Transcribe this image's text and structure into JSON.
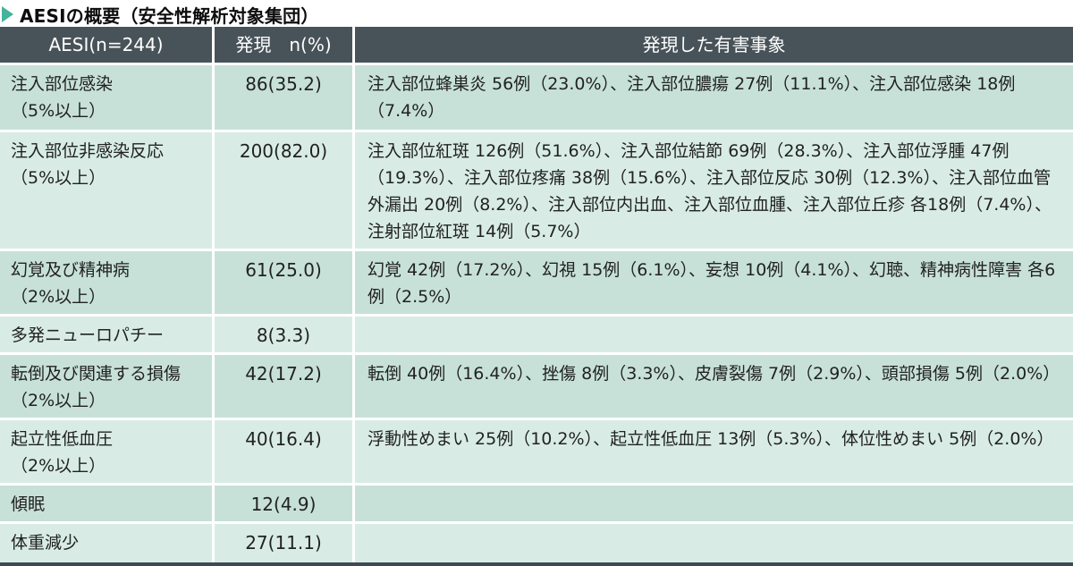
{
  "title": {
    "text": "AESIの概要（安全性解析対象集団）"
  },
  "colors": {
    "header_bg": "#485359",
    "row_dark": "#c7e1d9",
    "row_light": "#d8ece5",
    "marker_teal": "#45b39c",
    "bottom_border": "#3e4a52"
  },
  "table": {
    "headers": {
      "aesi": "AESI(n=244)",
      "incidence": "発現　n(%)",
      "events": "発現した有害事象"
    },
    "rows": [
      {
        "aesi": "注入部位感染\n（5%以上）",
        "incidence": "86(35.2)",
        "events": "注入部位蜂巣炎 56例（23.0%）、注入部位膿瘍 27例（11.1%）、注入部位感染 18例（7.4%）"
      },
      {
        "aesi": "注入部位非感染反応\n（5%以上）",
        "incidence": "200(82.0)",
        "events": "注入部位紅斑 126例（51.6%）、注入部位結節 69例（28.3%）、注入部位浮腫 47例（19.3%）、注入部位疼痛 38例（15.6%）、注入部位反応 30例（12.3%）、注入部位血管外漏出 20例（8.2%）、注入部位内出血、注入部位血腫、注入部位丘疹 各18例（7.4%）、注射部位紅斑 14例（5.7%）"
      },
      {
        "aesi": "幻覚及び精神病\n（2%以上）",
        "incidence": "61(25.0)",
        "events": "幻覚 42例（17.2%）、幻視 15例（6.1%）、妄想 10例（4.1%）、幻聴、精神病性障害 各6例（2.5%）"
      },
      {
        "aesi": "多発ニューロパチー",
        "incidence": "8(3.3)",
        "events": ""
      },
      {
        "aesi": "転倒及び関連する損傷\n（2%以上）",
        "incidence": "42(17.2)",
        "events": "転倒 40例（16.4%）、挫傷 8例（3.3%）、皮膚裂傷 7例（2.9%）、頭部損傷 5例（2.0%）"
      },
      {
        "aesi": "起立性低血圧\n（2%以上）",
        "incidence": "40(16.4)",
        "events": "浮動性めまい 25例（10.2%）、起立性低血圧 13例（5.3%）、体位性めまい 5例（2.0%）"
      },
      {
        "aesi": "傾眠",
        "incidence": "12(4.9)",
        "events": ""
      },
      {
        "aesi": "体重減少",
        "incidence": "27(11.1)",
        "events": ""
      }
    ]
  }
}
